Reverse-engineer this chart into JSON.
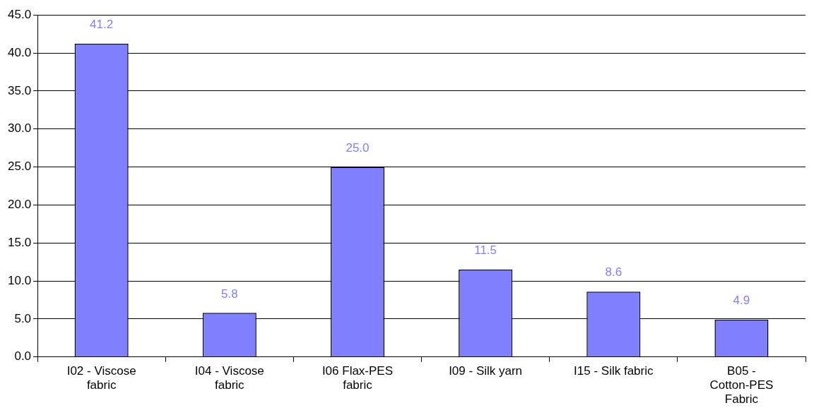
{
  "chart_data": {
    "type": "bar",
    "categories": [
      "I02 - Viscose fabric",
      "I04 - Viscose fabric",
      "I06 Flax-PES fabric",
      "I09 - Silk yarn",
      "I15 - Silk fabric",
      "B05 - Cotton-PES Fabric"
    ],
    "values": [
      41.2,
      5.8,
      25.0,
      11.5,
      8.6,
      4.9
    ],
    "color": "#8080ff",
    "ylim": [
      0,
      45
    ],
    "yticks": [
      {
        "value": 0,
        "label": "0.0"
      },
      {
        "value": 5,
        "label": "5.0"
      },
      {
        "value": 10,
        "label": "10.0"
      },
      {
        "value": 15,
        "label": "15.0"
      },
      {
        "value": 20,
        "label": "20.0"
      },
      {
        "value": 25,
        "label": "25.0"
      },
      {
        "value": 30,
        "label": "30.0"
      },
      {
        "value": 35,
        "label": "35.0"
      },
      {
        "value": 40,
        "label": "40.0"
      },
      {
        "value": 45,
        "label": "45.0"
      }
    ],
    "grid": "y",
    "legend": false,
    "value_labels": [
      "41.2",
      "5.8",
      "25.0",
      "11.5",
      "8.6",
      "4.9"
    ]
  }
}
